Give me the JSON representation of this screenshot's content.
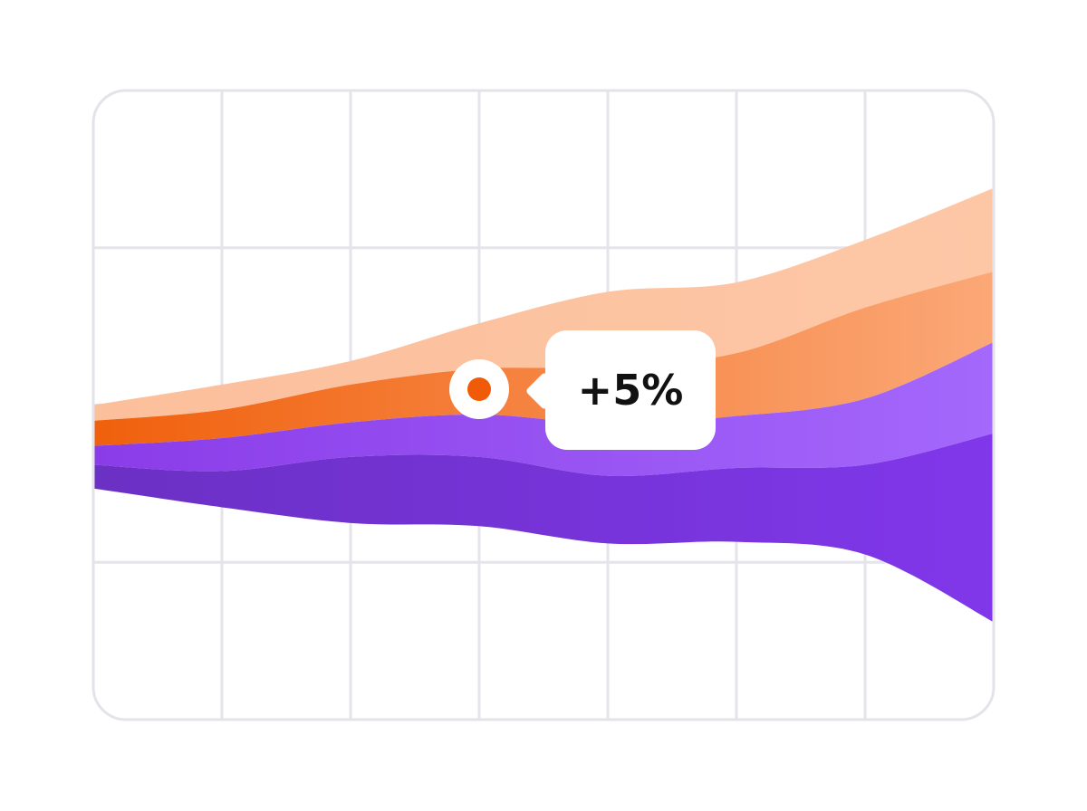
{
  "chart_data": {
    "type": "area",
    "subtype": "streamgraph",
    "title": "",
    "xlabel": "",
    "ylabel": "",
    "x": [
      0,
      1,
      2,
      3,
      4,
      5,
      6,
      7
    ],
    "ylim": [
      0,
      4
    ],
    "grid": true,
    "boundaries": {
      "top": [
        2.0,
        2.13,
        2.28,
        2.52,
        2.72,
        2.78,
        3.05,
        3.38
      ],
      "b1": [
        1.9,
        1.97,
        2.13,
        2.23,
        2.24,
        2.33,
        2.62,
        2.85
      ],
      "b2": [
        1.74,
        1.79,
        1.89,
        1.94,
        1.88,
        1.93,
        2.04,
        2.4
      ],
      "b3": [
        1.62,
        1.58,
        1.67,
        1.67,
        1.55,
        1.6,
        1.62,
        1.82
      ],
      "bottom": [
        1.47,
        1.35,
        1.25,
        1.23,
        1.12,
        1.13,
        1.05,
        0.62
      ]
    },
    "layers": [
      {
        "from": "b1",
        "to": "top",
        "colors": [
          "#fcbf9c",
          "#fdc7a6"
        ]
      },
      {
        "from": "b2",
        "to": "b1",
        "colors": [
          "#f0600c",
          "#fba877"
        ]
      },
      {
        "from": "b3",
        "to": "b2",
        "colors": [
          "#8a3ce8",
          "#a468fc"
        ]
      },
      {
        "from": "bottom",
        "to": "b3",
        "colors": [
          "#6b30c4",
          "#8037ea"
        ]
      }
    ],
    "highlight": {
      "x": 3,
      "series_boundary": "b1",
      "label": "+5%",
      "marker_color": "#f15a06"
    }
  }
}
